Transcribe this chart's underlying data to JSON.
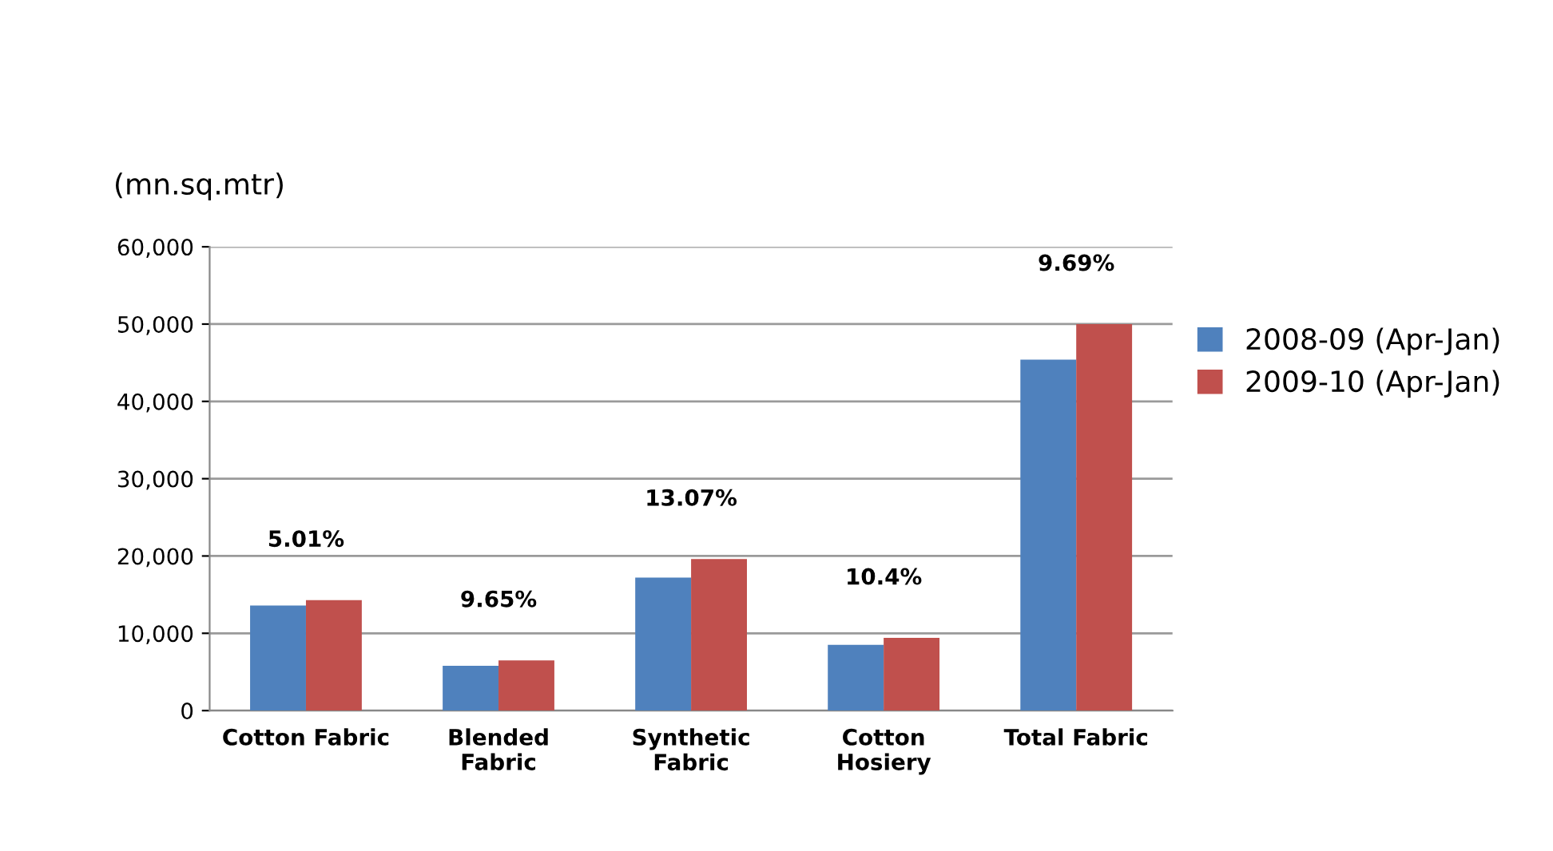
{
  "chart_data": {
    "type": "bar",
    "ylabel": "(mn.sq.mtr)",
    "categories": [
      "Cotton Fabric",
      "Blended\nFabric",
      "Synthetic\nFabric",
      "Cotton\nHosiery",
      "Total Fabric"
    ],
    "series": [
      {
        "name": "2008-09 (Apr-Jan)",
        "color": "#4f81bd",
        "values": [
          13600,
          5800,
          17200,
          8500,
          45400
        ]
      },
      {
        "name": "2009-10 (Apr-Jan)",
        "color": "#c0504d",
        "values": [
          14300,
          6500,
          19600,
          9400,
          50000
        ]
      }
    ],
    "ylim": [
      0,
      60000
    ],
    "yticks": [
      0,
      {
        "value": 10000,
        "label": "10,000"
      },
      {
        "value": 20000,
        "label": "20,000"
      },
      {
        "value": 30000,
        "label": "30,000"
      },
      {
        "value": 40000,
        "label": "40,000"
      },
      {
        "value": 50000,
        "label": "50,000"
      },
      {
        "value": 60000,
        "label": "60,000"
      }
    ],
    "grid": "y",
    "legend": "right",
    "annotations": [
      "5.01%",
      "9.65%",
      "13.07%",
      "10.4%",
      "9.69%"
    ]
  }
}
